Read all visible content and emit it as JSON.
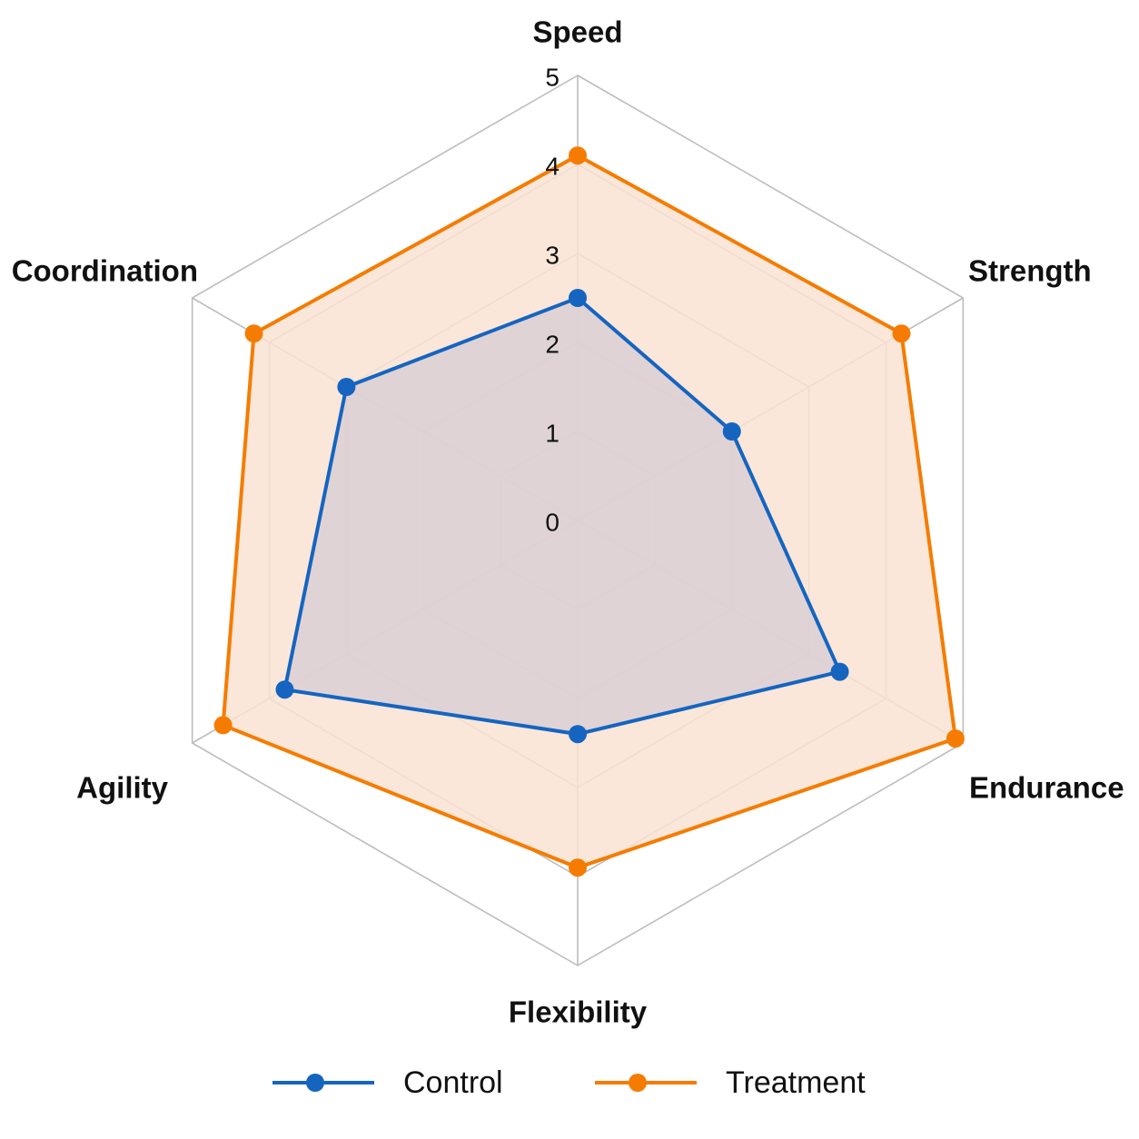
{
  "chart_data": {
    "type": "radar",
    "axes": [
      "Speed",
      "Strength",
      "Endurance",
      "Flexibility",
      "Agility",
      "Coordination"
    ],
    "rlim": [
      0,
      5
    ],
    "ticks": [
      "0",
      "1",
      "2",
      "3",
      "4",
      "5"
    ],
    "series": [
      {
        "name": "Control",
        "values": [
          2.5,
          2.0,
          3.4,
          2.4,
          3.8,
          3.0
        ],
        "color": "#1565c0",
        "fill": "#d9cfd3"
      },
      {
        "name": "Treatment",
        "values": [
          4.1,
          4.2,
          4.9,
          3.9,
          4.6,
          4.2
        ],
        "color": "#f57c00",
        "fill": "#f9e3d2"
      }
    ],
    "grid": true,
    "legend": "bottom"
  }
}
